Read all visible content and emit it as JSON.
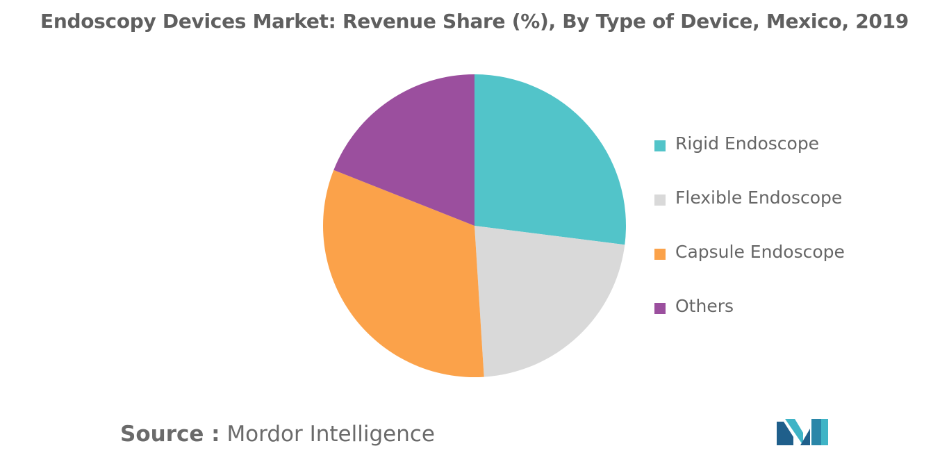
{
  "title": "Endoscopy Devices Market: Revenue Share (%), By Type of Device, Mexico, 2019",
  "source": {
    "label": "Source :",
    "value": "Mordor Intelligence"
  },
  "colors": {
    "rigid": "#52c4c9",
    "flexible": "#d9d9d9",
    "capsule": "#fba24a",
    "others": "#9b4f9e"
  },
  "chart_data": {
    "type": "pie",
    "title": "Endoscopy Devices Market: Revenue Share (%), By Type of Device, Mexico, 2019",
    "legend_position": "right",
    "slices": [
      {
        "label": "Rigid Endoscope",
        "value": 27,
        "color": "#52c4c9"
      },
      {
        "label": "Flexible Endoscope",
        "value": 22,
        "color": "#d9d9d9"
      },
      {
        "label": "Capsule Endoscope",
        "value": 32,
        "color": "#fba24a"
      },
      {
        "label": "Others",
        "value": 19,
        "color": "#9b4f9e"
      }
    ]
  },
  "legend": [
    {
      "label": "Rigid Endoscope",
      "color": "#52c4c9"
    },
    {
      "label": "Flexible Endoscope",
      "color": "#d9d9d9"
    },
    {
      "label": "Capsule Endoscope",
      "color": "#fba24a"
    },
    {
      "label": "Others",
      "color": "#9b4f9e"
    }
  ],
  "logo_icon": "mordor-intelligence-logo-icon"
}
